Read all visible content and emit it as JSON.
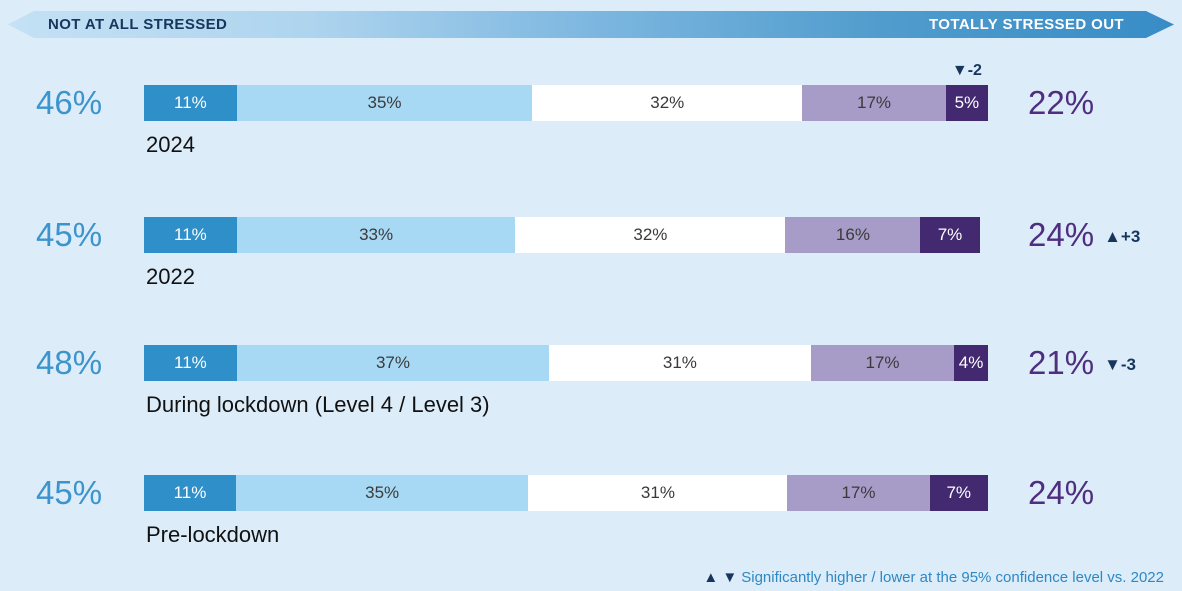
{
  "page": {
    "background": "#dcecf9"
  },
  "banner": {
    "left_label": "NOT AT ALL STRESSED",
    "right_label": "TOTALLY STRESSED OUT",
    "left_text_color": "#16365c",
    "right_text_color": "#ffffff"
  },
  "chart_data": {
    "type": "bar",
    "subtype": "horizontal-stacked-100pct",
    "scale_left": "NOT AT ALL STRESSED",
    "scale_right": "TOTALLY STRESSED OUT",
    "series_colors": [
      "#2e8fc9",
      "#a8d9f4",
      "#ffffff",
      "#a79cc8",
      "#432a70"
    ],
    "rows": [
      {
        "label": "2024",
        "left_total": "46%",
        "right_total": "22%",
        "segments": [
          11,
          35,
          32,
          17,
          5
        ],
        "bar_marker": {
          "symbol": "▼",
          "value": "-2",
          "segment_index": 4
        },
        "right_marker": null
      },
      {
        "label": "2022",
        "left_total": "45%",
        "right_total": "24%",
        "segments": [
          11,
          33,
          32,
          16,
          7
        ],
        "bar_marker": null,
        "right_marker": {
          "symbol": "▲",
          "value": "+3"
        }
      },
      {
        "label": "During lockdown (Level 4 / Level 3)",
        "left_total": "48%",
        "right_total": "21%",
        "segments": [
          11,
          37,
          31,
          17,
          4
        ],
        "bar_marker": null,
        "right_marker": {
          "symbol": "▼",
          "value": "-3"
        }
      },
      {
        "label": "Pre-lockdown",
        "left_total": "45%",
        "right_total": "24%",
        "segments": [
          11,
          35,
          31,
          17,
          7
        ],
        "bar_marker": null,
        "right_marker": null
      }
    ],
    "footnote": {
      "symbols": "▲ ▼",
      "text": "Significantly higher / lower at the 95% confidence level vs. 2022"
    }
  },
  "colors": {
    "left_total": "#3d94cd",
    "right_total": "#4f2d7f",
    "marker": "#17365e",
    "row_label": "#111111",
    "footnote_text": "#2f88c4",
    "segment_text_light": "#ffffff",
    "segment_text_dark": "#3a3a3a"
  }
}
